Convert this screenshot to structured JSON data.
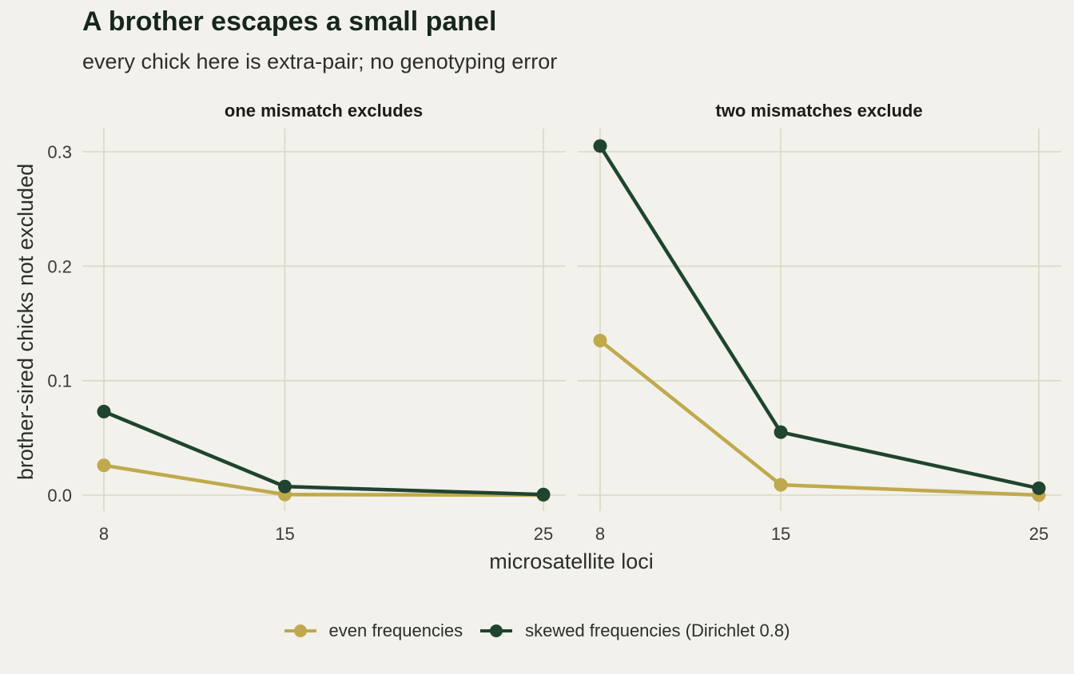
{
  "header": {
    "title": "A brother escapes a small panel",
    "subtitle": "every chick here is extra-pair; no genotyping error"
  },
  "chart_data": {
    "type": "line",
    "title": "A brother escapes a small panel",
    "subtitle": "every chick here is extra-pair; no genotyping error",
    "xlabel": "microsatellite loci",
    "ylabel": "brother-sired chicks not excluded",
    "x_ticks": [
      8,
      15,
      25
    ],
    "y_ticks": [
      0.0,
      0.1,
      0.2,
      0.3
    ],
    "y_tick_labels": [
      "0.0",
      "0.1",
      "0.2",
      "0.3"
    ],
    "xlim": [
      8,
      25
    ],
    "ylim": [
      0,
      0.305
    ],
    "grid": true,
    "legend_position": "bottom",
    "colors": {
      "background": "#f2f1eb",
      "grid": "#d9d8c6",
      "even": "#c0a94c",
      "skewed": "#1f4430"
    },
    "series_meta": [
      {
        "key": "even",
        "name": "even frequencies",
        "color": "#c0a94c"
      },
      {
        "key": "skewed",
        "name": "skewed frequencies (Dirichlet 0.8)",
        "color": "#1f4430"
      }
    ],
    "facets": [
      {
        "label": "one mismatch excludes",
        "x": [
          8,
          15,
          25
        ],
        "series": [
          {
            "name": "even frequencies",
            "values": [
              0.026,
              0.0005,
              0.0
            ]
          },
          {
            "name": "skewed frequencies (Dirichlet 0.8)",
            "values": [
              0.073,
              0.0075,
              0.0005
            ]
          }
        ]
      },
      {
        "label": "two mismatches exclude",
        "x": [
          8,
          15,
          25
        ],
        "series": [
          {
            "name": "even frequencies",
            "values": [
              0.135,
              0.009,
              0.0
            ]
          },
          {
            "name": "skewed frequencies (Dirichlet 0.8)",
            "values": [
              0.305,
              0.055,
              0.006
            ]
          }
        ]
      }
    ]
  }
}
